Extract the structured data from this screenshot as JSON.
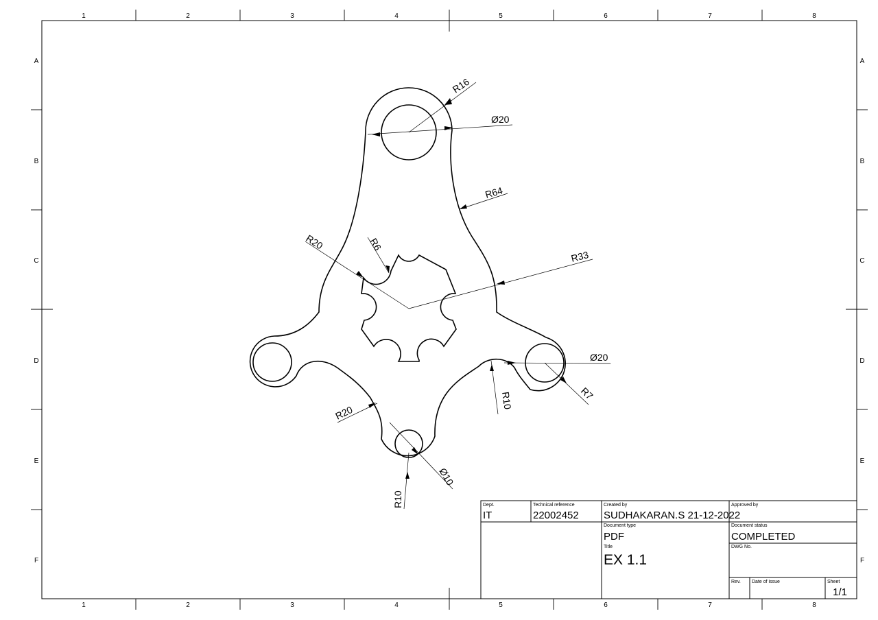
{
  "frame": {
    "columns": [
      "1",
      "2",
      "3",
      "4",
      "5",
      "6",
      "7",
      "8"
    ],
    "rows": [
      "A",
      "B",
      "C",
      "D",
      "E",
      "F"
    ]
  },
  "dimensions": {
    "top_outer_radius": "R16",
    "top_hole_diameter": "Ø20",
    "side_arc_radius": "R64",
    "center_radius": "R20",
    "notch_radius": "R6",
    "outer_profile_radius": "R33",
    "right_hole_diameter": "Ø20",
    "right_outer_radius": "R7",
    "right_fillet_radius": "R10",
    "lower_left_fillet_radius": "R20",
    "bottom_hole_diameter": "Ø10",
    "bottom_outer_radius": "R10"
  },
  "title_block": {
    "dept_label": "Dept.",
    "dept_value": "IT",
    "tech_ref_label": "Technical reference",
    "tech_ref_value": "22002452",
    "created_by_label": "Created by",
    "created_by_value": "SUDHAKARAN.S 21-12-2022",
    "approved_by_label": "Approved by",
    "approved_by_value": "",
    "doc_type_label": "Document type",
    "doc_type_value": "PDF",
    "doc_status_label": "Document status",
    "doc_status_value": "COMPLETED",
    "title_label": "Title",
    "title_value": "EX 1.1",
    "dwg_no_label": "DWG No.",
    "dwg_no_value": "",
    "rev_label": "Rev.",
    "date_issue_label": "Date of issue",
    "sheet_label": "Sheet",
    "sheet_value": "1/1"
  }
}
